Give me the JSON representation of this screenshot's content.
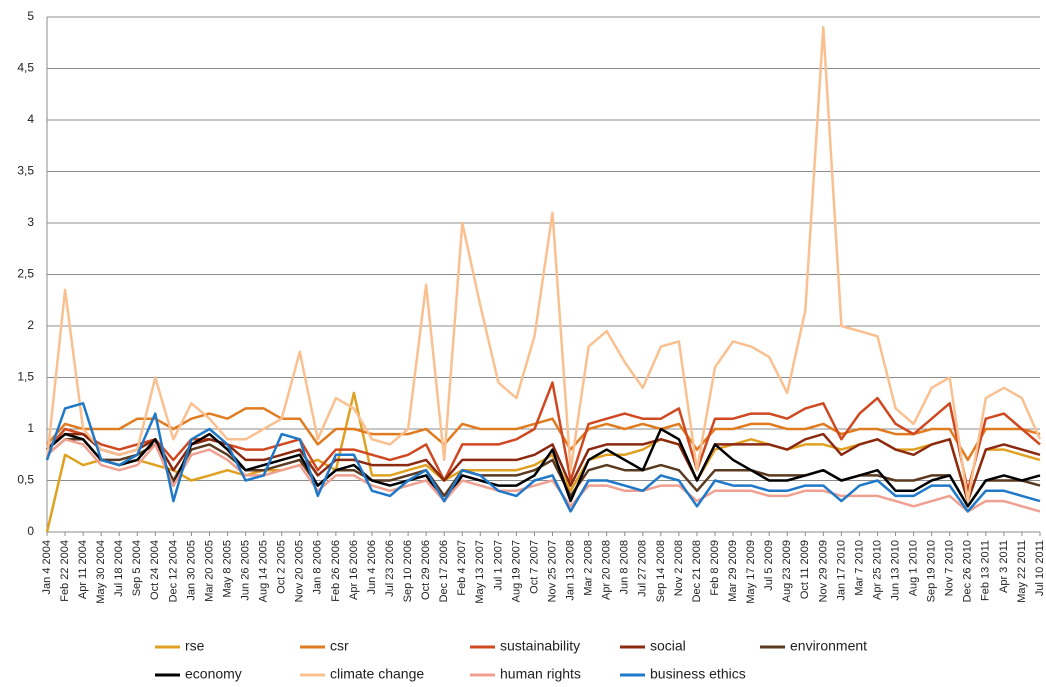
{
  "chart_data": {
    "type": "line",
    "categories": [
      "Jan 4 2004",
      "Feb 22 2004",
      "Apr 11 2004",
      "May 30 2004",
      "Jul 18 2004",
      "Sep 5 2004",
      "Oct 24 2004",
      "Dec 12 2004",
      "Jan 30 2005",
      "Mar 20 2005",
      "May 8 2005",
      "Jun 26 2005",
      "Aug 14 2005",
      "Oct 2 2005",
      "Nov 20 2005",
      "Jan 8 2006",
      "Feb 26 2006",
      "Apr 16 2006",
      "Jun 4 2006",
      "Jul 23 2006",
      "Sep 10 2006",
      "Oct 29 2006",
      "Dec 17 2006",
      "Feb 4 2007",
      "May 13 2007",
      "Jul 1 2007",
      "Aug 19 2007",
      "Oct 7 2007",
      "Nov 25 2007",
      "Jan 13 2008",
      "Mar 2 2008",
      "Apr 20 2008",
      "Jun 8 2008",
      "Jul 27 2008",
      "Sep 14 2008",
      "Nov 2 2008",
      "Dec 21 2008",
      "Feb 8 2009",
      "Mar 29 2009",
      "May 17 2009",
      "Jul 5 2009",
      "Aug 23 2009",
      "Oct 11 2009",
      "Nov 29 2009",
      "Jan 17 2010",
      "Mar 7 2010",
      "Apr 25 2010",
      "Jun 13 2010",
      "Aug 1 2010",
      "Sep 19 2010",
      "Nov 7 2010",
      "Dec 26 2010",
      "Feb 13 2011",
      "Apr 3 2011",
      "May 22 2011",
      "Jul 10 2011"
    ],
    "series": [
      {
        "name": "rse",
        "color": "#e0a020",
        "values": [
          0.0,
          0.75,
          0.65,
          0.7,
          0.65,
          0.7,
          0.65,
          0.6,
          0.5,
          0.55,
          0.6,
          0.55,
          0.6,
          0.6,
          0.65,
          0.7,
          0.6,
          1.35,
          0.55,
          0.55,
          0.6,
          0.65,
          0.5,
          0.6,
          0.6,
          0.6,
          0.6,
          0.65,
          0.75,
          0.4,
          0.7,
          0.75,
          0.75,
          0.8,
          0.9,
          0.85,
          0.5,
          0.8,
          0.85,
          0.9,
          0.85,
          0.8,
          0.85,
          0.85,
          0.8,
          0.85,
          0.9,
          0.8,
          0.8,
          0.85,
          0.9,
          0.3,
          0.8,
          0.8,
          0.75,
          0.7
        ]
      },
      {
        "name": "csr",
        "color": "#e07b20",
        "values": [
          0.85,
          1.05,
          1.0,
          1.0,
          1.0,
          1.1,
          1.1,
          1.0,
          1.1,
          1.15,
          1.1,
          1.2,
          1.2,
          1.1,
          1.1,
          0.85,
          1.0,
          1.0,
          0.95,
          0.95,
          0.95,
          1.0,
          0.85,
          1.05,
          1.0,
          1.0,
          1.0,
          1.05,
          1.1,
          0.8,
          1.0,
          1.05,
          1.0,
          1.05,
          1.0,
          1.05,
          0.8,
          1.0,
          1.0,
          1.05,
          1.05,
          1.0,
          1.0,
          1.05,
          0.95,
          1.0,
          1.0,
          0.95,
          0.95,
          1.0,
          1.0,
          0.7,
          1.0,
          1.0,
          1.0,
          0.95
        ]
      },
      {
        "name": "sustainability",
        "color": "#d04820",
        "values": [
          0.8,
          1.0,
          0.95,
          0.85,
          0.8,
          0.85,
          0.9,
          0.7,
          0.9,
          0.9,
          0.85,
          0.8,
          0.8,
          0.85,
          0.9,
          0.6,
          0.8,
          0.8,
          0.75,
          0.7,
          0.75,
          0.85,
          0.5,
          0.85,
          0.85,
          0.85,
          0.9,
          1.0,
          1.45,
          0.5,
          1.05,
          1.1,
          1.15,
          1.1,
          1.1,
          1.2,
          0.6,
          1.1,
          1.1,
          1.15,
          1.15,
          1.1,
          1.2,
          1.25,
          0.9,
          1.15,
          1.3,
          1.05,
          0.95,
          1.1,
          1.25,
          0.4,
          1.1,
          1.15,
          1.0,
          0.85
        ]
      },
      {
        "name": "social",
        "color": "#8b2a10",
        "values": [
          0.8,
          0.95,
          0.95,
          0.8,
          0.75,
          0.8,
          0.9,
          0.6,
          0.85,
          0.9,
          0.85,
          0.7,
          0.7,
          0.75,
          0.8,
          0.55,
          0.7,
          0.7,
          0.65,
          0.65,
          0.65,
          0.7,
          0.5,
          0.7,
          0.7,
          0.7,
          0.7,
          0.75,
          0.85,
          0.45,
          0.8,
          0.85,
          0.85,
          0.85,
          0.9,
          0.85,
          0.5,
          0.85,
          0.85,
          0.85,
          0.85,
          0.8,
          0.9,
          0.95,
          0.75,
          0.85,
          0.9,
          0.8,
          0.75,
          0.85,
          0.9,
          0.3,
          0.8,
          0.85,
          0.8,
          0.75
        ]
      },
      {
        "name": "environment",
        "color": "#5a3a20",
        "values": [
          0.75,
          0.9,
          0.9,
          0.7,
          0.7,
          0.75,
          0.85,
          0.5,
          0.8,
          0.85,
          0.75,
          0.6,
          0.6,
          0.65,
          0.7,
          0.45,
          0.6,
          0.6,
          0.5,
          0.5,
          0.55,
          0.6,
          0.35,
          0.6,
          0.55,
          0.55,
          0.55,
          0.6,
          0.7,
          0.35,
          0.6,
          0.65,
          0.6,
          0.6,
          0.65,
          0.6,
          0.4,
          0.6,
          0.6,
          0.6,
          0.55,
          0.55,
          0.55,
          0.6,
          0.5,
          0.55,
          0.55,
          0.5,
          0.5,
          0.55,
          0.55,
          0.25,
          0.5,
          0.5,
          0.5,
          0.45
        ]
      },
      {
        "name": "economy",
        "color": "#000000",
        "values": [
          0.8,
          0.95,
          0.9,
          0.7,
          0.65,
          0.7,
          0.9,
          0.45,
          0.85,
          0.95,
          0.8,
          0.6,
          0.65,
          0.7,
          0.75,
          0.45,
          0.6,
          0.65,
          0.5,
          0.45,
          0.5,
          0.55,
          0.3,
          0.55,
          0.5,
          0.45,
          0.45,
          0.55,
          0.8,
          0.3,
          0.7,
          0.8,
          0.7,
          0.6,
          1.0,
          0.9,
          0.5,
          0.85,
          0.7,
          0.6,
          0.5,
          0.5,
          0.55,
          0.6,
          0.5,
          0.55,
          0.6,
          0.4,
          0.4,
          0.5,
          0.55,
          0.25,
          0.5,
          0.55,
          0.5,
          0.55
        ]
      },
      {
        "name": "climate change",
        "color": "#fac090",
        "values": [
          0.7,
          2.35,
          1.0,
          0.8,
          0.75,
          0.8,
          1.5,
          0.9,
          1.25,
          1.1,
          0.9,
          0.9,
          1.0,
          1.1,
          1.75,
          0.9,
          1.3,
          1.2,
          0.9,
          0.85,
          1.0,
          2.4,
          0.7,
          3.0,
          2.2,
          1.45,
          1.3,
          1.9,
          3.1,
          0.6,
          1.8,
          1.95,
          1.65,
          1.4,
          1.8,
          1.85,
          0.6,
          1.6,
          1.85,
          1.8,
          1.7,
          1.35,
          2.15,
          4.9,
          2.0,
          1.95,
          1.9,
          1.2,
          1.05,
          1.4,
          1.5,
          0.3,
          1.3,
          1.4,
          1.3,
          0.9
        ]
      },
      {
        "name": "human rights",
        "color": "#f0a090",
        "values": [
          0.75,
          0.9,
          0.85,
          0.65,
          0.6,
          0.65,
          0.85,
          0.45,
          0.75,
          0.8,
          0.7,
          0.55,
          0.55,
          0.6,
          0.65,
          0.4,
          0.55,
          0.55,
          0.45,
          0.4,
          0.45,
          0.5,
          0.3,
          0.5,
          0.45,
          0.4,
          0.4,
          0.45,
          0.5,
          0.25,
          0.45,
          0.45,
          0.4,
          0.4,
          0.45,
          0.45,
          0.3,
          0.4,
          0.4,
          0.4,
          0.35,
          0.35,
          0.4,
          0.4,
          0.35,
          0.35,
          0.35,
          0.3,
          0.25,
          0.3,
          0.35,
          0.2,
          0.3,
          0.3,
          0.25,
          0.2
        ]
      },
      {
        "name": "business ethics",
        "color": "#1f78c8",
        "values": [
          0.7,
          1.2,
          1.25,
          0.7,
          0.65,
          0.75,
          1.15,
          0.3,
          0.9,
          1.0,
          0.85,
          0.5,
          0.55,
          0.95,
          0.9,
          0.35,
          0.75,
          0.75,
          0.4,
          0.35,
          0.5,
          0.6,
          0.3,
          0.6,
          0.55,
          0.4,
          0.35,
          0.5,
          0.55,
          0.2,
          0.5,
          0.5,
          0.45,
          0.4,
          0.55,
          0.5,
          0.25,
          0.5,
          0.45,
          0.45,
          0.4,
          0.4,
          0.45,
          0.45,
          0.3,
          0.45,
          0.5,
          0.35,
          0.35,
          0.45,
          0.45,
          0.2,
          0.4,
          0.4,
          0.35,
          0.3
        ]
      }
    ],
    "ylim": [
      0,
      5
    ],
    "yticks": [
      0,
      {
        "value": 0.5,
        "label": "0,5"
      },
      1,
      {
        "value": 1.5,
        "label": "1,5"
      },
      2,
      {
        "value": 2.5,
        "label": "2,5"
      },
      3,
      {
        "value": 3.5,
        "label": "3,5"
      },
      4,
      {
        "value": 4.5,
        "label": "4,5"
      },
      5
    ],
    "grid": true,
    "legend": "bottom"
  }
}
